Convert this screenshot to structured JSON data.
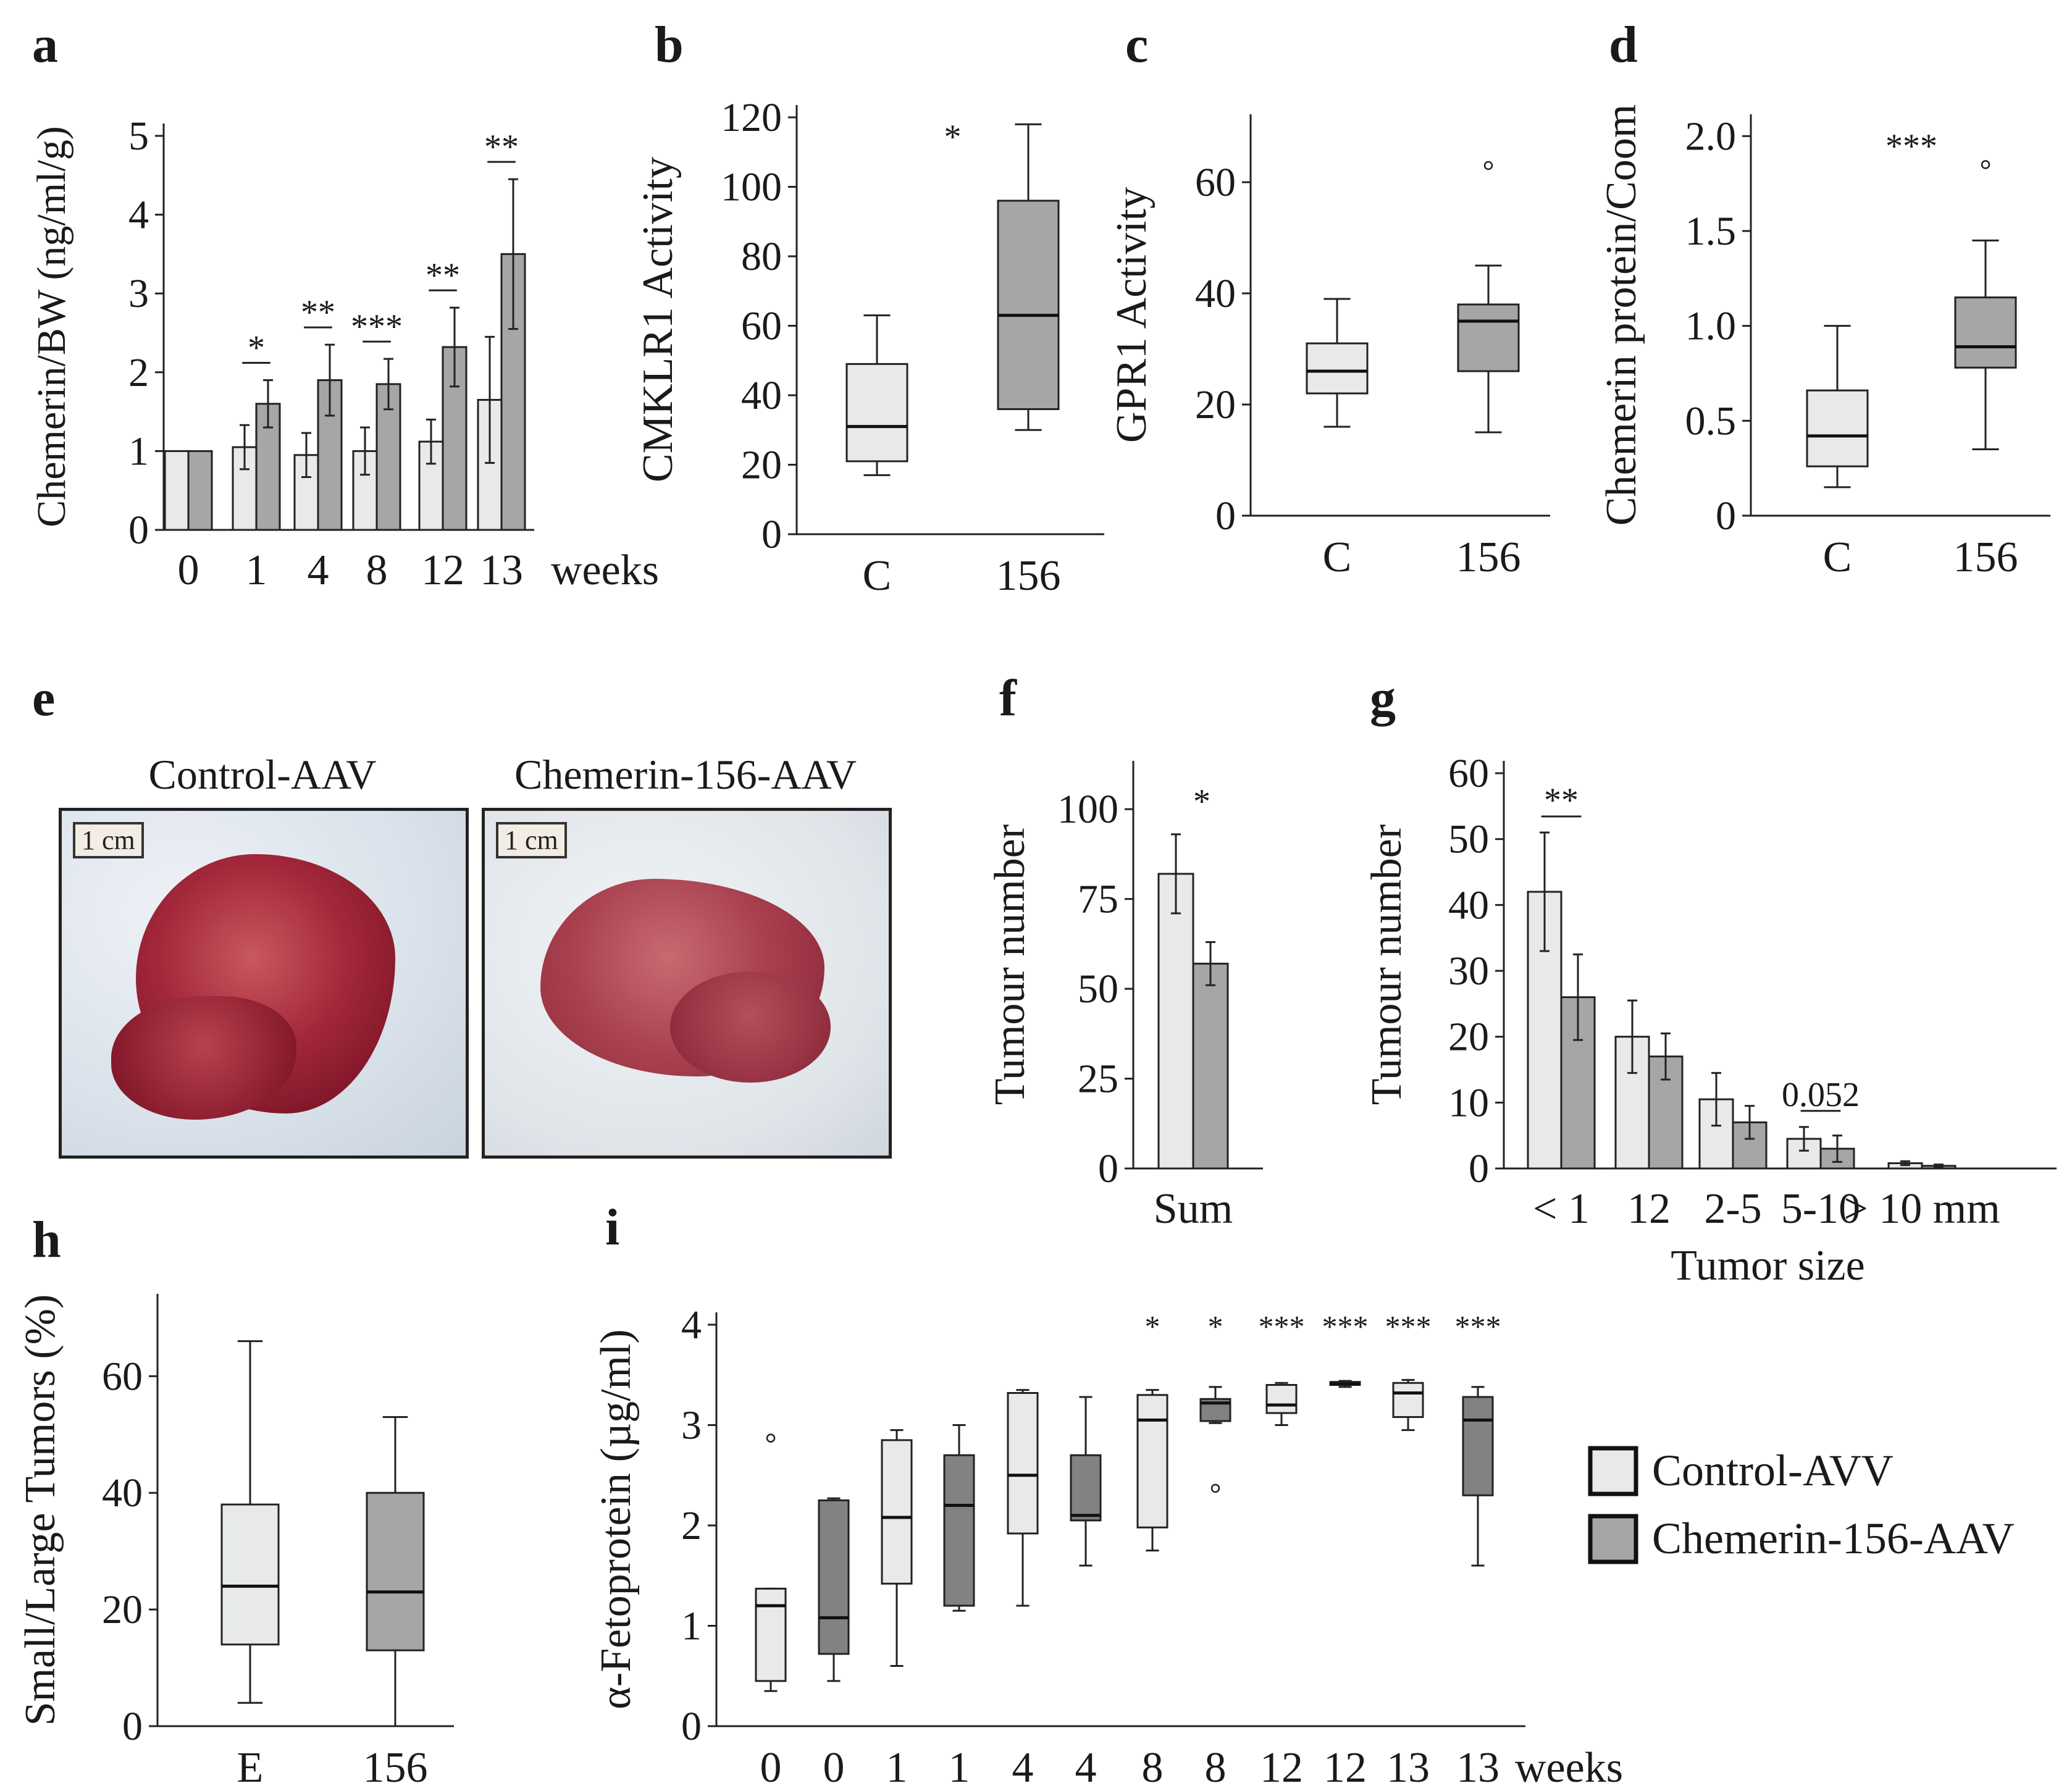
{
  "panel_labels": {
    "a": "a",
    "b": "b",
    "c": "c",
    "d": "d",
    "e": "e",
    "f": "f",
    "g": "g",
    "h": "h",
    "i": "i"
  },
  "colors": {
    "control": "#e8eaea",
    "chemerin": "#a6a6a6",
    "chemerin_dark": "#828282",
    "line": "#222222"
  },
  "legend": {
    "control": "Control-AVV",
    "chemerin": "Chemerin-156-AAV"
  },
  "photos": {
    "left_title": "Control-AAV",
    "right_title": "Chemerin-156-AAV",
    "scale": "1 cm"
  },
  "chart_data": [
    {
      "panel": "a",
      "type": "bar",
      "categories": [
        "0",
        "1",
        "4",
        "8",
        "12",
        "13"
      ],
      "category_suffix": "weeks",
      "ylabel": "Chemerin/BW (ng/ml/g)",
      "ylim": [
        0,
        5
      ],
      "yticks": [
        "0",
        "1",
        "2",
        "3",
        "4",
        "5"
      ],
      "series": [
        {
          "name": "Control",
          "values": [
            1.0,
            1.05,
            0.95,
            1.0,
            1.12,
            1.65
          ],
          "errors": [
            0,
            0.28,
            0.28,
            0.3,
            0.28,
            0.8
          ]
        },
        {
          "name": "Chemerin-156",
          "values": [
            1.0,
            1.6,
            1.9,
            1.85,
            2.32,
            3.5
          ],
          "errors": [
            0,
            0.3,
            0.45,
            0.32,
            0.5,
            0.95
          ]
        }
      ],
      "annotations": [
        "",
        "*",
        "**",
        "***",
        "**",
        "**"
      ]
    },
    {
      "panel": "b",
      "type": "box",
      "ylabel": "CMKLR1 Activity",
      "categories": [
        "C",
        "156"
      ],
      "ylim": [
        0,
        120
      ],
      "yticks": [
        "0",
        "20",
        "40",
        "60",
        "80",
        "100",
        "120"
      ],
      "boxes": [
        {
          "min": 17,
          "q1": 21,
          "median": 31,
          "q3": 49,
          "max": 63
        },
        {
          "min": 30,
          "q1": 36,
          "median": 63,
          "q3": 96,
          "max": 118
        }
      ],
      "outliers": [
        [],
        []
      ],
      "annotation": "*"
    },
    {
      "panel": "c",
      "type": "box",
      "ylabel": "GPR1 Activity",
      "categories": [
        "C",
        "156"
      ],
      "ylim": [
        0,
        70
      ],
      "yticks": [
        "0",
        "20",
        "40",
        "60"
      ],
      "boxes": [
        {
          "min": 16,
          "q1": 22,
          "median": 26,
          "q3": 31,
          "max": 39
        },
        {
          "min": 15,
          "q1": 26,
          "median": 35,
          "q3": 38,
          "max": 45
        }
      ],
      "outliers": [
        [],
        [
          63
        ]
      ],
      "annotation": ""
    },
    {
      "panel": "d",
      "type": "box",
      "ylabel": "Chemerin protein/Coom",
      "categories": [
        "C",
        "156"
      ],
      "ylim": [
        0,
        2.05
      ],
      "yticks": [
        "0",
        "0.5",
        "1.0",
        "1.5",
        "2.0"
      ],
      "boxes": [
        {
          "min": 0.15,
          "q1": 0.26,
          "median": 0.42,
          "q3": 0.66,
          "max": 1.0
        },
        {
          "min": 0.35,
          "q1": 0.78,
          "median": 0.89,
          "q3": 1.15,
          "max": 1.45
        }
      ],
      "outliers": [
        [],
        [
          1.85
        ]
      ],
      "annotation": "***"
    },
    {
      "panel": "f",
      "type": "bar",
      "ylabel": "Tumour number",
      "categories": [
        "Sum"
      ],
      "ylim": [
        0,
        110
      ],
      "yticks": [
        "0",
        "25",
        "50",
        "75",
        "100"
      ],
      "series": [
        {
          "name": "Control",
          "values": [
            82
          ],
          "errors": [
            11
          ]
        },
        {
          "name": "Chemerin-156",
          "values": [
            57
          ],
          "errors": [
            6
          ]
        }
      ],
      "annotation": "*"
    },
    {
      "panel": "g",
      "type": "bar",
      "ylabel": "Tumour number",
      "xlabel": "Tumor size",
      "categories": [
        "< 1",
        "12",
        "2-5",
        "5-10",
        "> 10 mm"
      ],
      "ylim": [
        0,
        60
      ],
      "yticks": [
        "0",
        "10",
        "20",
        "30",
        "40",
        "50",
        "60"
      ],
      "series": [
        {
          "name": "Control",
          "values": [
            42,
            20,
            10.5,
            4.5,
            0.8
          ],
          "errors": [
            9,
            5.5,
            4,
            1.8,
            0.3
          ]
        },
        {
          "name": "Chemerin-156",
          "values": [
            26,
            17,
            7,
            3,
            0.4
          ],
          "errors": [
            6.5,
            3.5,
            2.5,
            2,
            0.2
          ]
        }
      ],
      "annotations": [
        "**",
        "",
        "",
        "0.052",
        ""
      ]
    },
    {
      "panel": "h",
      "type": "box",
      "ylabel": "Small/Large Tumors (%)",
      "categories": [
        "E",
        "156"
      ],
      "ylim": [
        0,
        72
      ],
      "yticks": [
        "0",
        "20",
        "40",
        "60"
      ],
      "boxes": [
        {
          "min": 4,
          "q1": 14,
          "median": 24,
          "q3": 38,
          "max": 66
        },
        {
          "min": 0,
          "q1": 13,
          "median": 23,
          "q3": 40,
          "max": 53
        }
      ],
      "outliers": [
        [],
        []
      ],
      "annotation": ""
    },
    {
      "panel": "i",
      "type": "box",
      "ylabel": "α-Fetoprotein (µg/ml)",
      "categories": [
        "0",
        "0",
        "1",
        "1",
        "4",
        "4",
        "8",
        "8",
        "12",
        "12",
        "13",
        "13"
      ],
      "category_suffix": "weeks",
      "ylim": [
        0,
        4
      ],
      "yticks": [
        "0",
        "1",
        "2",
        "3",
        "4"
      ],
      "series_pattern": [
        "Control",
        "Chemerin-156"
      ],
      "boxes": [
        {
          "min": 0.35,
          "q1": 0.45,
          "median": 1.2,
          "q3": 1.37,
          "max": 1.37
        },
        {
          "min": 0.45,
          "q1": 0.72,
          "median": 1.08,
          "q3": 2.25,
          "max": 2.27
        },
        {
          "min": 0.6,
          "q1": 1.42,
          "median": 2.08,
          "q3": 2.85,
          "max": 2.95
        },
        {
          "min": 1.15,
          "q1": 1.2,
          "median": 2.2,
          "q3": 2.7,
          "max": 3.0
        },
        {
          "min": 1.2,
          "q1": 1.92,
          "median": 2.5,
          "q3": 3.32,
          "max": 3.35
        },
        {
          "min": 1.6,
          "q1": 2.05,
          "median": 2.1,
          "q3": 2.7,
          "max": 3.28
        },
        {
          "min": 1.75,
          "q1": 1.98,
          "median": 3.05,
          "q3": 3.3,
          "max": 3.35
        },
        {
          "min": 3.02,
          "q1": 3.04,
          "median": 3.22,
          "q3": 3.26,
          "max": 3.38
        },
        {
          "min": 3.0,
          "q1": 3.12,
          "median": 3.2,
          "q3": 3.4,
          "max": 3.42
        },
        {
          "min": 3.38,
          "q1": 3.4,
          "median": 3.41,
          "q3": 3.43,
          "max": 3.44
        },
        {
          "min": 2.95,
          "q1": 3.08,
          "median": 3.32,
          "q3": 3.42,
          "max": 3.45
        },
        {
          "min": 1.6,
          "q1": 2.3,
          "median": 3.05,
          "q3": 3.28,
          "max": 3.38
        }
      ],
      "outliers": [
        [
          2.87
        ],
        [],
        [],
        [],
        [],
        [],
        [],
        [
          2.37
        ],
        [],
        [],
        [],
        []
      ],
      "annotations": [
        "",
        "",
        "",
        "",
        "",
        "",
        "*",
        "*",
        "***",
        "***",
        "***",
        "***"
      ]
    }
  ]
}
